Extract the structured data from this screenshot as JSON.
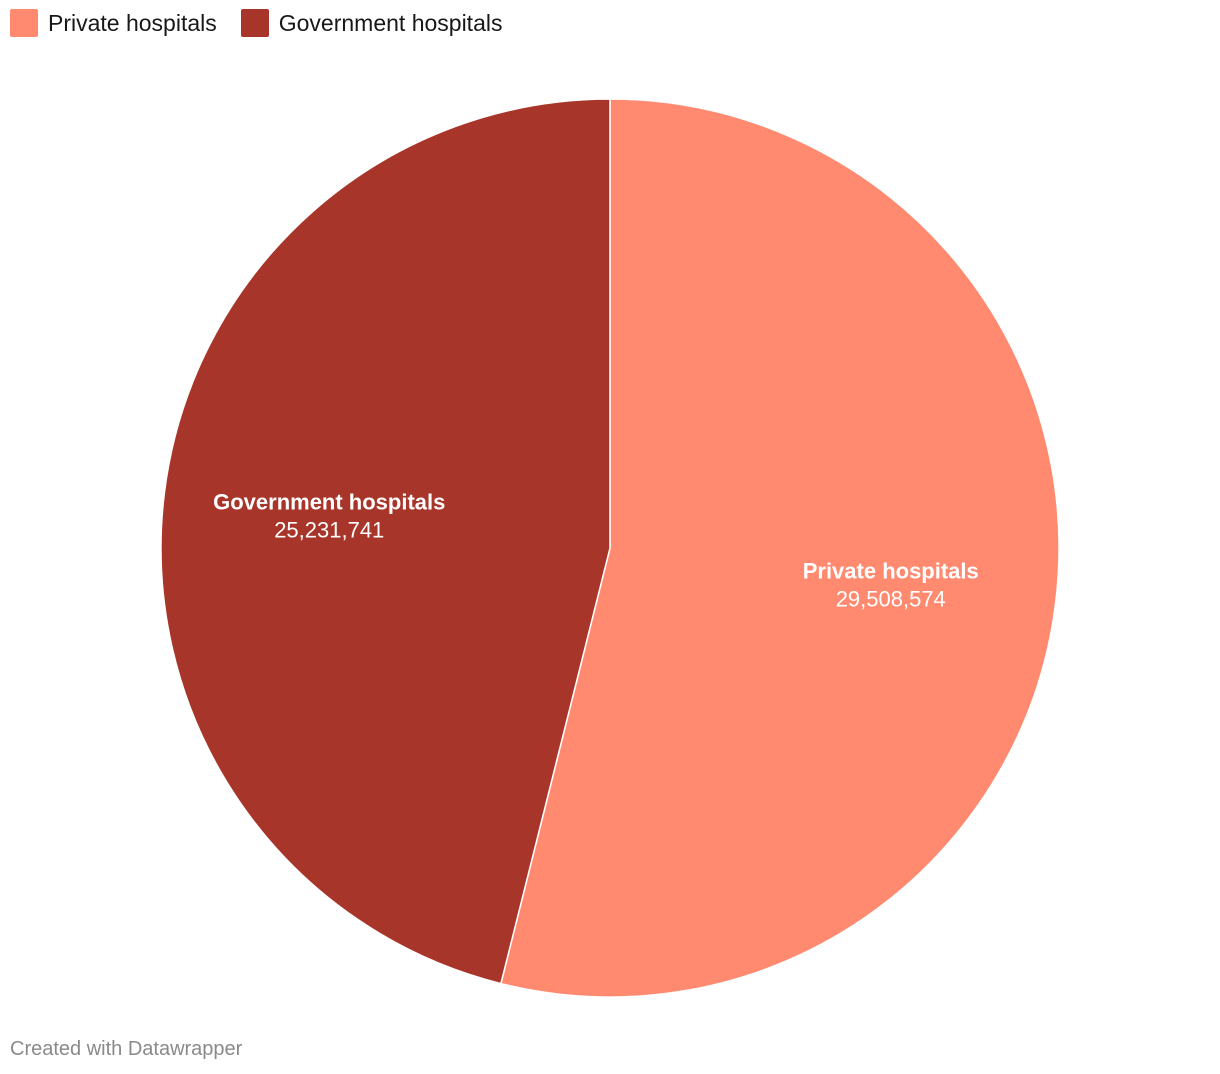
{
  "chart_data": {
    "type": "pie",
    "title": "",
    "slices": [
      {
        "label": "Private hospitals",
        "value": 29508574,
        "value_label": "29,508,574",
        "color": "#ff8a70"
      },
      {
        "label": "Government hospitals",
        "value": 25231741,
        "value_label": "25,231,741",
        "color": "#a83529"
      }
    ],
    "legend_position": "top-left"
  },
  "legend": {
    "items": [
      {
        "label": "Private hospitals",
        "color": "#ff8a70"
      },
      {
        "label": "Government hospitals",
        "color": "#a83529"
      }
    ]
  },
  "footer": {
    "credit": "Created with Datawrapper"
  }
}
